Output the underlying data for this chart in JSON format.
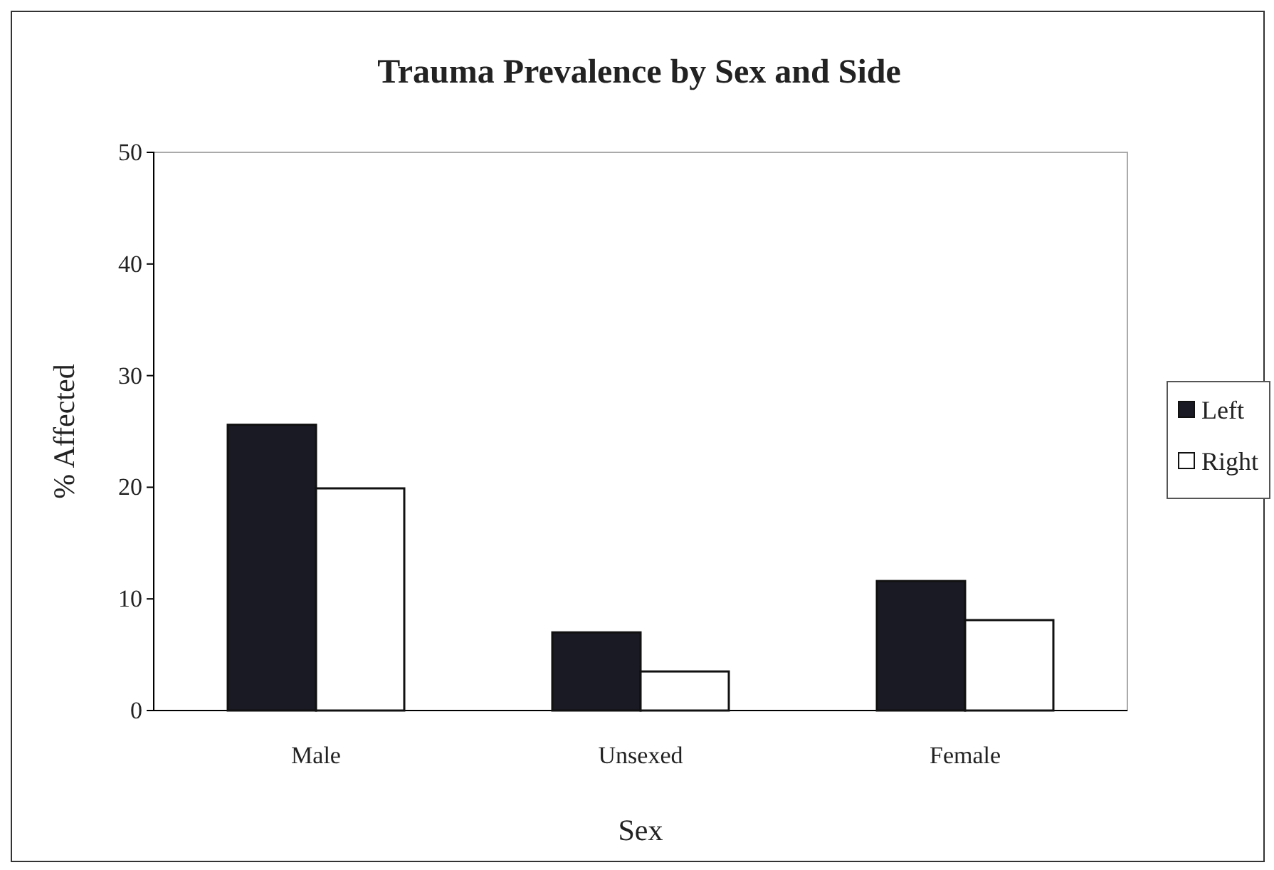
{
  "chart_data": {
    "type": "bar",
    "title": "Trauma Prevalence by Sex and Side",
    "xlabel": "Sex",
    "ylabel": "% Affected",
    "categories": [
      "Male",
      "Unsexed",
      "Female"
    ],
    "series": [
      {
        "name": "Left",
        "color": "#1a1a24",
        "values": [
          25.6,
          7.0,
          11.6
        ]
      },
      {
        "name": "Right",
        "color": "#ffffff",
        "values": [
          19.9,
          3.5,
          8.1
        ]
      }
    ],
    "ylim": [
      0,
      50
    ],
    "yticks": [
      0,
      10,
      20,
      30,
      40,
      50
    ],
    "grid": false,
    "legend": "right"
  }
}
